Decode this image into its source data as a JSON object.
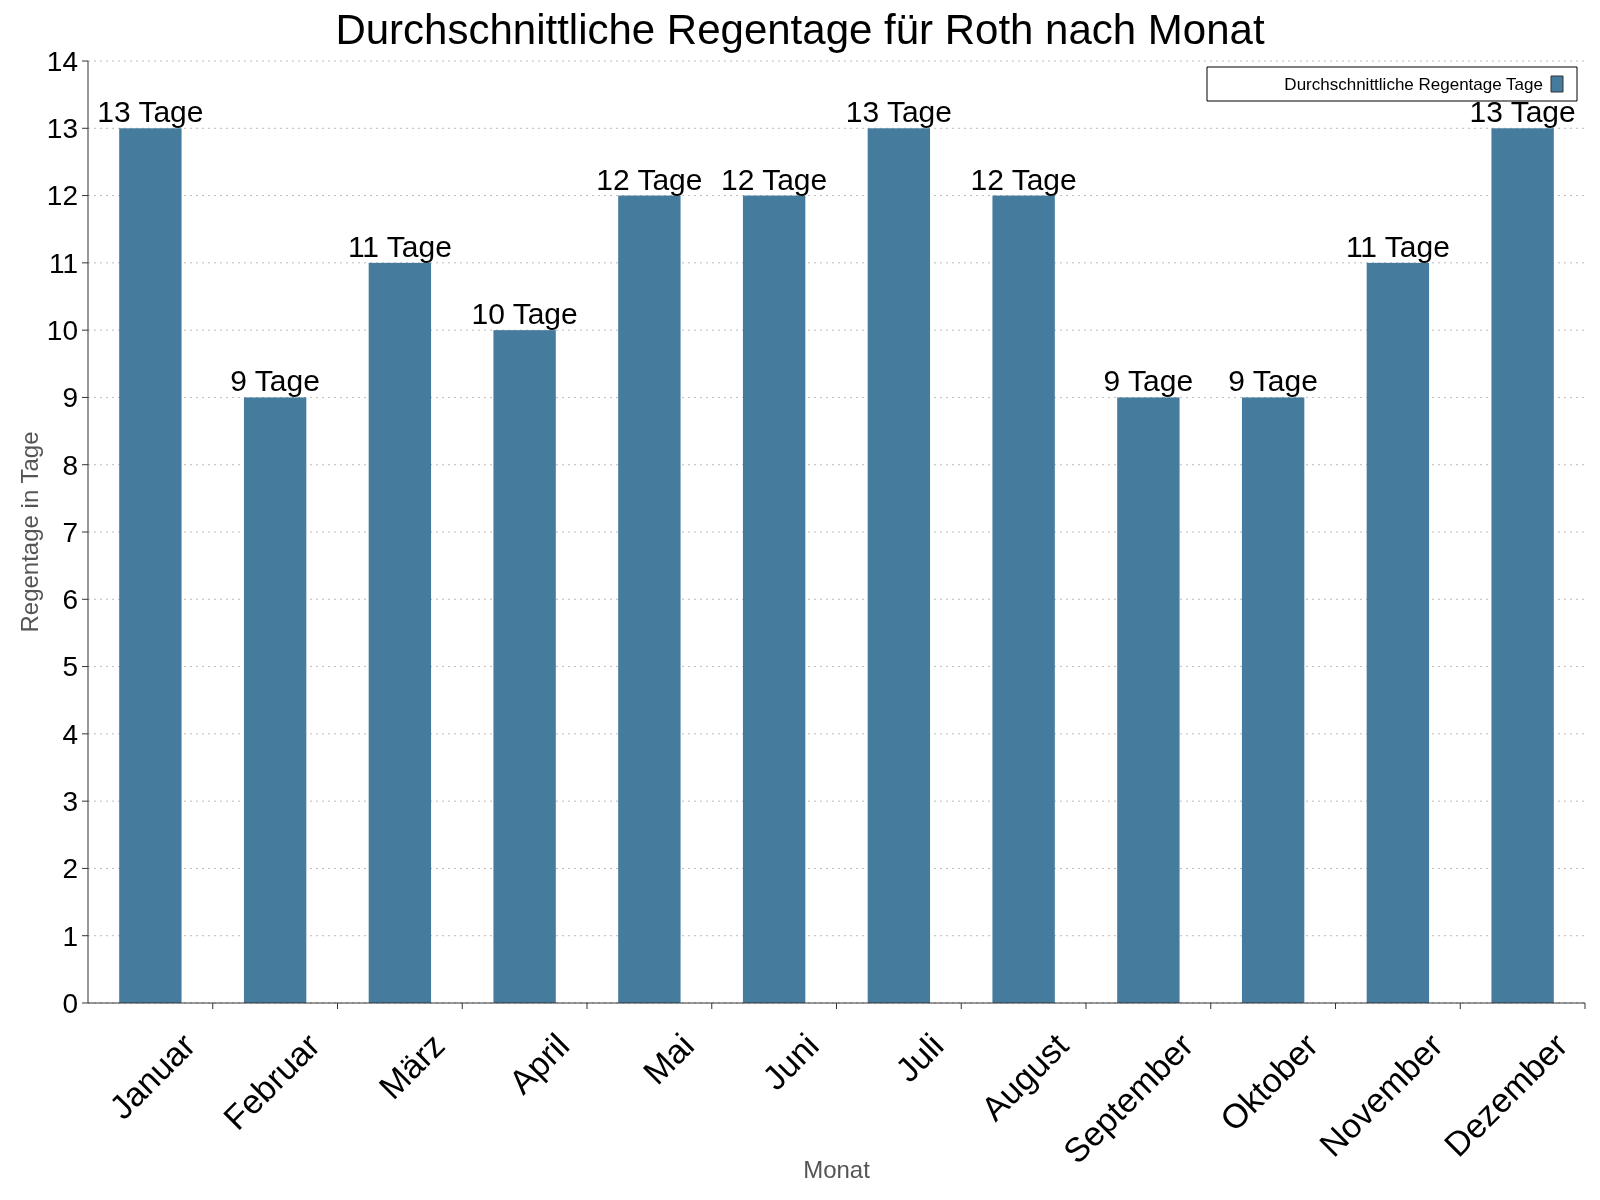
{
  "chart_data": {
    "type": "bar",
    "title": "Durchschnittliche Regentage für Roth nach Monat",
    "xlabel": "Monat",
    "ylabel": "Regentage in Tage",
    "categories": [
      "Januar",
      "Februar",
      "März",
      "April",
      "Mai",
      "Juni",
      "Juli",
      "August",
      "September",
      "Oktober",
      "November",
      "Dezember"
    ],
    "series": [
      {
        "name": "Durchschnittliche Regentage Tage",
        "color": "#457b9d",
        "values": [
          13,
          9,
          11,
          10,
          12,
          12,
          13,
          12,
          9,
          9,
          11,
          13
        ],
        "value_labels": [
          "13 Tage",
          "9 Tage",
          "11 Tage",
          "10 Tage",
          "12 Tage",
          "12 Tage",
          "13 Tage",
          "12 Tage",
          "9 Tage",
          "9 Tage",
          "11 Tage",
          "13 Tage"
        ]
      }
    ],
    "ylim": [
      0,
      14
    ],
    "yticks": [
      0,
      1,
      2,
      3,
      4,
      5,
      6,
      7,
      8,
      9,
      10,
      11,
      12,
      13,
      14
    ],
    "grid": "y",
    "legend": "top right"
  }
}
